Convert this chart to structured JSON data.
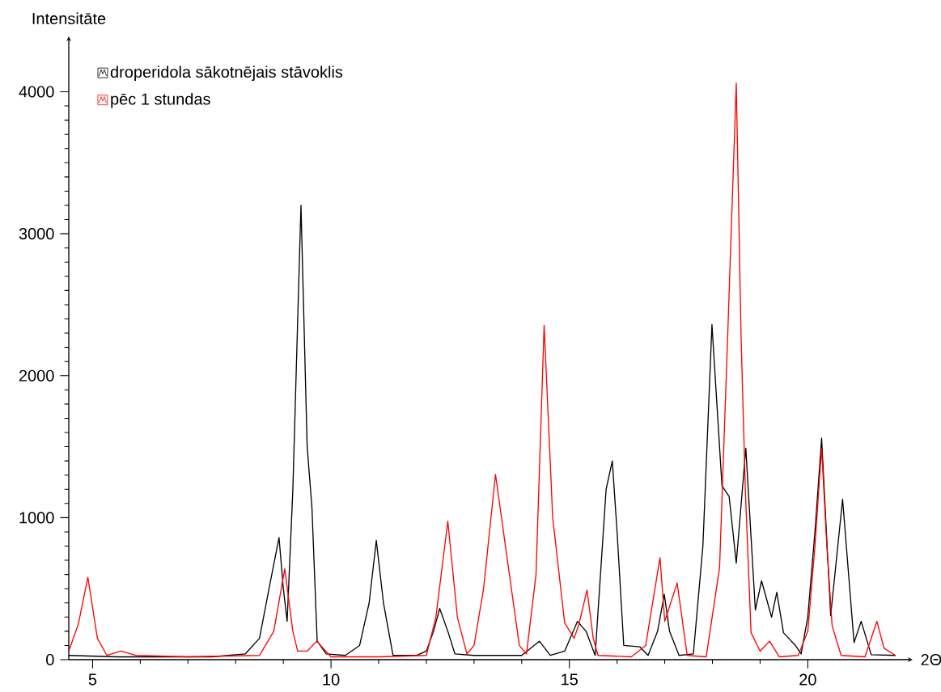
{
  "chart_data": {
    "type": "line",
    "xlabel": "2Θ",
    "ylabel": "Intensitāte",
    "xlim": [
      4.5,
      22.2
    ],
    "ylim": [
      0,
      4390
    ],
    "xticks": [
      5,
      10,
      15,
      20
    ],
    "yticks": [
      0,
      1000,
      2000,
      3000,
      4000
    ],
    "legend": "top left",
    "grid": false,
    "marker": "none",
    "line_style": "solid",
    "series": [
      {
        "name": "droperidola sākotnējais stāvoklis",
        "color": "#000000",
        "x": [
          4.5,
          5.5,
          6.5,
          7.5,
          8.2,
          8.5,
          8.7,
          8.91,
          9.0,
          9.08,
          9.2,
          9.37,
          9.5,
          9.6,
          9.71,
          9.9,
          10.3,
          10.6,
          10.8,
          10.95,
          11.1,
          11.3,
          11.8,
          12.0,
          12.15,
          12.28,
          12.45,
          12.6,
          13.0,
          14.0,
          14.37,
          14.6,
          14.9,
          15.17,
          15.35,
          15.54,
          15.77,
          15.9,
          16.0,
          16.14,
          16.48,
          16.65,
          16.85,
          16.99,
          17.1,
          17.3,
          17.6,
          17.8,
          17.99,
          18.2,
          18.35,
          18.5,
          18.7,
          18.9,
          19.03,
          19.24,
          19.35,
          19.49,
          19.74,
          19.86,
          20.0,
          20.15,
          20.29,
          20.48,
          20.73,
          20.97,
          21.12,
          21.33,
          21.84
        ],
        "values": [
          30,
          20,
          20,
          20,
          40,
          150,
          500,
          860,
          500,
          270,
          1200,
          3200,
          1500,
          1070,
          130,
          40,
          30,
          100,
          400,
          840,
          400,
          30,
          30,
          60,
          200,
          360,
          200,
          40,
          30,
          30,
          130,
          30,
          60,
          270,
          200,
          30,
          1200,
          1400,
          900,
          100,
          90,
          30,
          200,
          460,
          200,
          30,
          40,
          800,
          2360,
          1225,
          1150,
          680,
          1490,
          350,
          555,
          300,
          475,
          190,
          100,
          40,
          300,
          900,
          1560,
          310,
          1130,
          120,
          270,
          35,
          30
        ]
      },
      {
        "name": "pēc 1 stundas",
        "color": "#ff0000",
        "x": [
          4.5,
          4.7,
          4.9,
          5.1,
          5.3,
          5.6,
          5.9,
          7.0,
          8.5,
          8.8,
          9.03,
          9.2,
          9.3,
          9.5,
          9.7,
          10.0,
          11.0,
          12.0,
          12.2,
          12.45,
          12.65,
          12.85,
          13.0,
          13.2,
          13.45,
          13.7,
          13.95,
          14.1,
          14.3,
          14.47,
          14.65,
          14.9,
          15.1,
          15.2,
          15.37,
          15.5,
          15.6,
          16.3,
          16.6,
          16.9,
          17.0,
          17.26,
          17.47,
          17.87,
          18.15,
          18.32,
          18.5,
          18.6,
          18.69,
          18.81,
          19.0,
          19.2,
          19.4,
          19.8,
          20.0,
          20.15,
          20.29,
          20.4,
          20.51,
          20.7,
          21.2,
          21.45,
          21.6,
          21.84
        ],
        "values": [
          60,
          250,
          580,
          150,
          30,
          60,
          30,
          20,
          30,
          200,
          640,
          200,
          60,
          60,
          130,
          20,
          20,
          30,
          300,
          975,
          300,
          40,
          100,
          500,
          1305,
          700,
          100,
          40,
          600,
          2355,
          1000,
          260,
          150,
          250,
          490,
          150,
          30,
          20,
          100,
          718,
          270,
          540,
          30,
          20,
          650,
          2285,
          4060,
          2285,
          1195,
          190,
          60,
          130,
          20,
          30,
          200,
          800,
          1490,
          800,
          240,
          30,
          20,
          270,
          80,
          30
        ]
      }
    ]
  }
}
